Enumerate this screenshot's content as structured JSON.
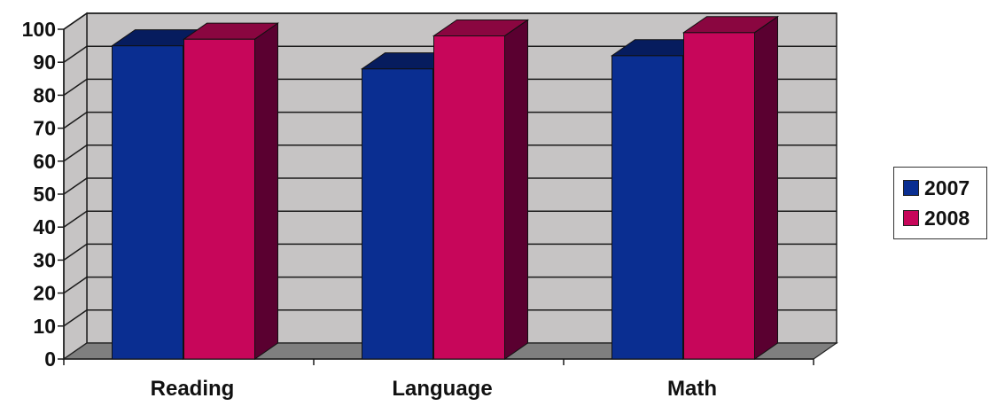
{
  "chart_data": {
    "type": "bar",
    "title": "",
    "xlabel": "",
    "ylabel": "",
    "categories": [
      "Reading",
      "Language",
      "Math"
    ],
    "series": [
      {
        "name": "2007",
        "values": [
          95,
          88,
          92
        ]
      },
      {
        "name": "2008",
        "values": [
          97,
          98,
          99
        ]
      }
    ],
    "ylim": [
      0,
      100
    ],
    "yticks": [
      "0",
      "10",
      "20",
      "30",
      "40",
      "50",
      "60",
      "70",
      "80",
      "90",
      "100"
    ],
    "grid": true,
    "style": "3d",
    "legend": "right"
  },
  "colors": {
    "wall": "#c6c4c4",
    "floor": "#7f7f7f",
    "series": [
      {
        "front": "#0a2e91",
        "top": "#061c5e",
        "side": "#041648"
      },
      {
        "front": "#c7065a",
        "top": "#8a0640",
        "side": "#5a0030"
      }
    ]
  }
}
